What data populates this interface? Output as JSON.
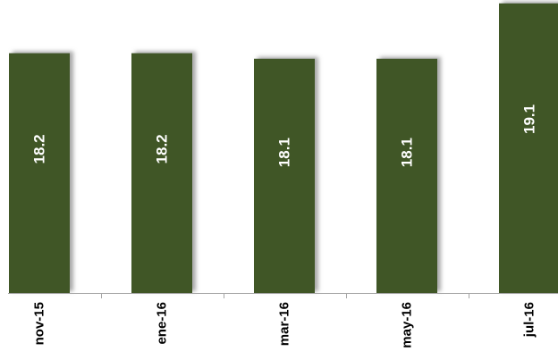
{
  "chart_data": {
    "type": "bar",
    "categories": [
      "nov-15",
      "ene-16",
      "mar-16",
      "may-16",
      "jul-16"
    ],
    "values": [
      18.2,
      18.2,
      18.1,
      18.1,
      19.1
    ],
    "value_labels": [
      "18.2",
      "18.2",
      "18.1",
      "18.1",
      "19.1"
    ],
    "title": "",
    "xlabel": "",
    "ylabel": "",
    "bar_color": "#3f5628",
    "shadow_color": "#9a9a9a",
    "axis_color": "#a6a6a6",
    "grid": false,
    "legend": "none"
  }
}
